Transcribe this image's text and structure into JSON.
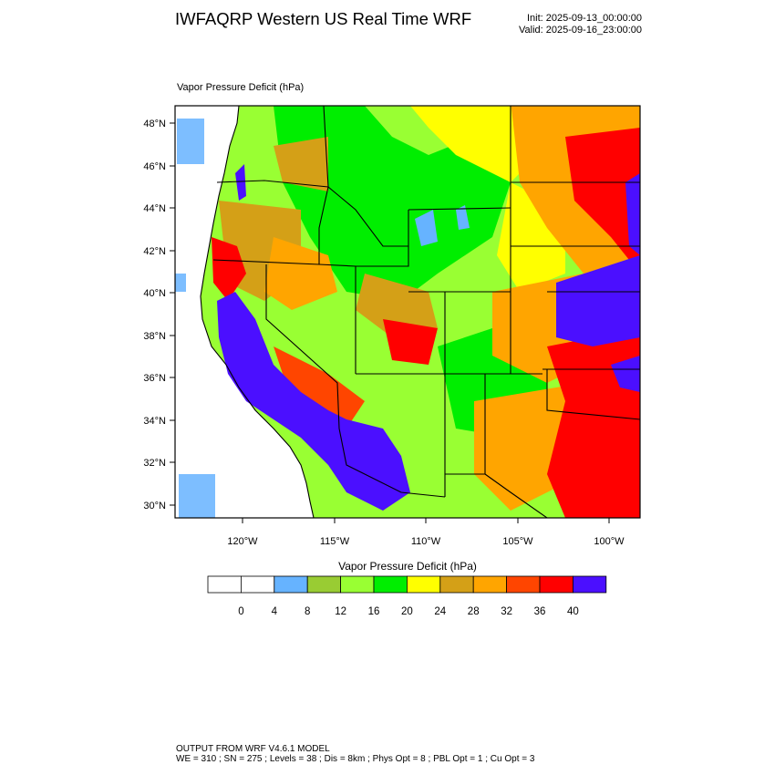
{
  "header": {
    "title": "IWFAQRP Western US Real Time WRF",
    "init": "Init: 2025-09-13_00:00:00",
    "valid": "Valid: 2025-09-16_23:00:00"
  },
  "map": {
    "field_label": "Vapor Pressure Deficit   (hPa)",
    "lat_labels": [
      "48°N",
      "46°N",
      "44°N",
      "42°N",
      "40°N",
      "38°N",
      "36°N",
      "34°N",
      "32°N",
      "30°N"
    ],
    "lon_labels": [
      "120°W",
      "115°W",
      "110°W",
      "105°W",
      "100°W"
    ],
    "colors": {
      "c4_8": "#66b3ff",
      "c8_12": "#99cc33",
      "c12_16": "#99ff33",
      "c16_20": "#00ee00",
      "c20_24": "#ffff00",
      "c24_28": "#d4a017",
      "c28_32": "#ffa500",
      "c32_36": "#ff4500",
      "c36_40": "#ff0000",
      "c40plus": "#4b0fff",
      "ocean": "#ffffff"
    }
  },
  "colorbar": {
    "title": "Vapor Pressure Deficit  (hPa)",
    "ticks": [
      "0",
      "4",
      "8",
      "12",
      "16",
      "20",
      "24",
      "28",
      "32",
      "36",
      "40"
    ],
    "colors": [
      "#ffffff",
      "#ffffff",
      "#66b3ff",
      "#99cc33",
      "#99ff33",
      "#00ee00",
      "#ffff00",
      "#d4a017",
      "#ffa500",
      "#ff4500",
      "#ff0000",
      "#4b0fff"
    ]
  },
  "footer": {
    "line1": "OUTPUT FROM WRF V4.6.1 MODEL",
    "line2": "WE = 310 ; SN = 275 ; Levels = 38 ; Dis = 8km ; Phys Opt = 8 ; PBL Opt = 1 ; Cu Opt = 3"
  }
}
